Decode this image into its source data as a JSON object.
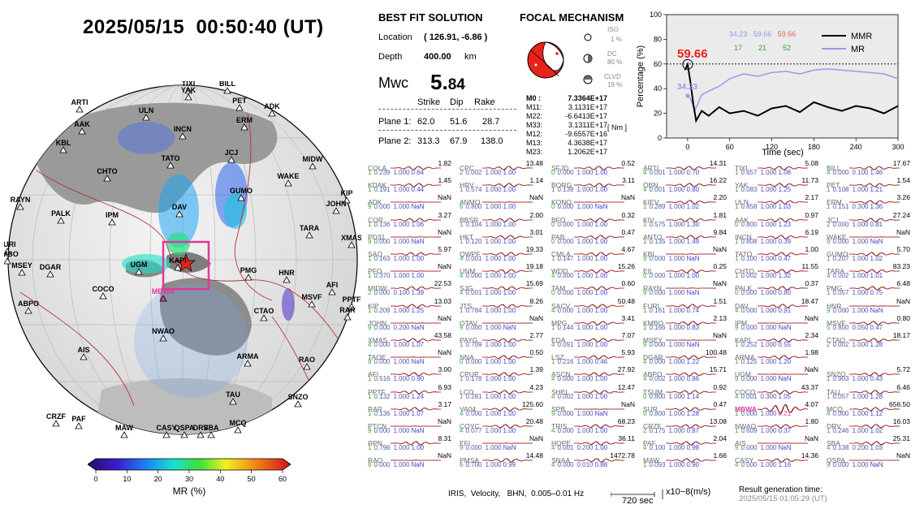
{
  "title": "2025/05/15  00:50:40 (UT)",
  "best_fit": {
    "heading": "BEST FIT SOLUTION",
    "location_label": "Location",
    "location_value": "( 126.91, -6.86 )",
    "depth_label": "Depth",
    "depth_value": "400.00",
    "depth_unit": "km",
    "mw_label": "Mwc",
    "mw_value_main": "5.",
    "mw_value_sub": "84",
    "col_strike": "Strike",
    "col_dip": "Dip",
    "col_rake": "Rake",
    "plane1_label": "Plane 1:",
    "plane1": [
      "62.0",
      "51.6",
      "28.7"
    ],
    "plane2_label": "Plane 2:",
    "plane2": [
      "313.3",
      "67.9",
      "138.0"
    ]
  },
  "focal": {
    "heading": "FOCAL MECHANISM",
    "iso_label": "ISO",
    "iso_value": "1 %",
    "dc_label": "DC",
    "dc_value": "80 %",
    "clvd_label": "CLVD",
    "clvd_value": "19 %",
    "moments": [
      {
        "k": "M0 :",
        "v": "7.3364E+17"
      },
      {
        "k": "M11:",
        "v": "3.1131E+17"
      },
      {
        "k": "M22:",
        "v": "-6.6413E+17"
      },
      {
        "k": "M33:",
        "v": "3.1311E+17"
      },
      {
        "k": "M12:",
        "v": "-9.6557E+16"
      },
      {
        "k": "M13:",
        "v": "4.3638E+17"
      },
      {
        "k": "M23:",
        "v": "1.2062E+17"
      }
    ],
    "unit": "[ Nm ]",
    "colors": {
      "compressional": "#e8231a",
      "dilatational": "#ffffff"
    }
  },
  "mmr_chart": {
    "big_value": "59.66",
    "marker_label": "34.23",
    "legend": [
      {
        "name": "MMR",
        "color": "#000000"
      },
      {
        "name": "MR",
        "color": "#9999ee"
      }
    ],
    "stats_row1": [
      "34.23",
      "59.66",
      "59.66"
    ],
    "stats_row2": [
      "17",
      "21",
      "52"
    ],
    "stats_colors": [
      "#9999ee",
      "#9999ee",
      "#e06060"
    ],
    "stats_colors2": [
      "#33aa33",
      "#33aa33",
      "#33aa33"
    ],
    "ylabel": "Percentage (%)",
    "xlabel": "Time (sec)",
    "xticks": [
      "0",
      "60",
      "120",
      "180",
      "240",
      "300"
    ],
    "yticks": [
      "0",
      "20",
      "40",
      "60",
      "80",
      "100"
    ],
    "ref_line": 60
  },
  "chart_data": {
    "type": "line",
    "xlabel": "Time (sec)",
    "ylabel": "Percentage (%)",
    "xlim": [
      -30,
      300
    ],
    "ylim": [
      0,
      100
    ],
    "series": [
      {
        "name": "MMR",
        "x": [
          -4,
          0,
          4,
          8,
          12,
          20,
          30,
          45,
          60,
          80,
          100,
          120,
          140,
          160,
          180,
          200,
          220,
          240,
          260,
          280,
          300
        ],
        "y": [
          55,
          59.66,
          45,
          28,
          14,
          22,
          18,
          25,
          20,
          22,
          18,
          24,
          26,
          21,
          29,
          25,
          22,
          26,
          24,
          20,
          26
        ]
      },
      {
        "name": "MR",
        "x": [
          0,
          4,
          10,
          20,
          30,
          45,
          60,
          80,
          100,
          120,
          140,
          160,
          180,
          200,
          220,
          240,
          260,
          280,
          300
        ],
        "y": [
          34.23,
          32,
          22,
          35,
          38,
          42,
          48,
          52,
          50,
          53,
          54,
          52,
          55,
          56,
          55,
          54,
          53,
          52,
          48
        ]
      }
    ]
  },
  "globe": {
    "stations": [
      {
        "n": "TIXI"
      },
      {
        "n": "YAK"
      },
      {
        "n": "BILL"
      },
      {
        "n": "ARTI"
      },
      {
        "n": "PET"
      },
      {
        "n": "ADK"
      },
      {
        "n": "ULN"
      },
      {
        "n": "AAK"
      },
      {
        "n": "ERM"
      },
      {
        "n": "INCN"
      },
      {
        "n": "KBL"
      },
      {
        "n": "JCJ"
      },
      {
        "n": "TATO"
      },
      {
        "n": "MIDW"
      },
      {
        "n": "CHTO"
      },
      {
        "n": "WAKE"
      },
      {
        "n": "GUMO"
      },
      {
        "n": "KIP"
      },
      {
        "n": "JOHN"
      },
      {
        "n": "RAYN"
      },
      {
        "n": "PALK"
      },
      {
        "n": "DAV"
      },
      {
        "n": "IPM"
      },
      {
        "n": "TARA"
      },
      {
        "n": "FURI"
      },
      {
        "n": "XMAS"
      },
      {
        "n": "KMBO"
      },
      {
        "n": "MSEY"
      },
      {
        "n": "DGAR"
      },
      {
        "n": "UGM"
      },
      {
        "n": "PMG"
      },
      {
        "n": "HNR"
      },
      {
        "n": "COCO"
      },
      {
        "n": "AFI"
      },
      {
        "n": "MSVF"
      },
      {
        "n": "PPTF"
      },
      {
        "n": "RAR"
      },
      {
        "n": "ABPO"
      },
      {
        "n": "MBWA"
      },
      {
        "n": "CTAO"
      },
      {
        "n": "NWAO"
      },
      {
        "n": "ARMA"
      },
      {
        "n": "RAO"
      },
      {
        "n": "AIS"
      },
      {
        "n": "TAU"
      },
      {
        "n": "SNZO"
      },
      {
        "n": "CRZF"
      },
      {
        "n": "PAF"
      },
      {
        "n": "MCQ"
      },
      {
        "n": "MAW"
      },
      {
        "n": "CASY"
      },
      {
        "n": "DRV"
      },
      {
        "n": "SBA"
      },
      {
        "n": "QSPA"
      },
      {
        "n": "KAPI"
      }
    ],
    "highlight_station": "MBWA"
  },
  "colorbar": {
    "ticks": [
      "0",
      "10",
      "20",
      "30",
      "40",
      "50",
      "60"
    ],
    "label": "MR (%)"
  },
  "stations_grid": [
    [
      "COLA",
      "1.82",
      "1",
      "0.239",
      "1.000",
      "0.64"
    ],
    [
      "CPC",
      "13.48",
      "2",
      "0.002",
      "1.000",
      "1.00"
    ],
    [
      "SFJD",
      "0.52",
      "0",
      "0.000",
      "1.000",
      "1.00"
    ],
    [
      "ARTI",
      "14.31",
      "4",
      "0.001",
      "1.000",
      "0.70"
    ],
    [
      "TIXI",
      "5.08",
      "1",
      "0.657",
      "1.000",
      "1.08"
    ],
    [
      "BILL",
      "17.67",
      "4",
      "0.000",
      "0.100",
      "1.46"
    ],
    [
      "KDAK",
      "1.45",
      "1",
      "0.191",
      "1.000",
      "0.44"
    ],
    [
      "HRV",
      "1.14",
      "1",
      "0.574",
      "1.000",
      "1.00"
    ],
    [
      "BORG",
      "3.11",
      "1",
      "0.139",
      "1.000",
      "1.00"
    ],
    [
      "OBN",
      "16.22",
      "4",
      "0.001",
      "1.000",
      "0.80"
    ],
    [
      "YAK",
      "11.73",
      "1",
      "0.083",
      "1.000",
      "1.25"
    ],
    [
      "PET",
      "1.54",
      "1",
      "0.108",
      "1.000",
      "1.21"
    ],
    [
      "ADK",
      "NaN",
      "9",
      "0.000",
      "1.000",
      "NaN"
    ],
    [
      "ANMO",
      "NaN",
      "6",
      "0.800",
      "1.000",
      "1.00"
    ],
    [
      "KONO",
      "NaN",
      "0",
      "0.000",
      "1.000",
      "NaN"
    ],
    [
      "KIEV",
      "2.20",
      "1",
      "0.289",
      "1.000",
      "1.02"
    ],
    [
      "ULN",
      "2.17",
      "1",
      "0.858",
      "1.000",
      "1.03"
    ],
    [
      "ERM",
      "3.26",
      "1",
      "0.151",
      "0.300",
      "1.36"
    ],
    [
      "COR",
      "3.27",
      "1",
      "0.136",
      "1.000",
      "1.06"
    ],
    [
      "BBSR",
      "2.00",
      "1",
      "0.104",
      "1.000",
      "1.00"
    ],
    [
      "BFO",
      "0.32",
      "0",
      "0.000",
      "1.000",
      "1.00"
    ],
    [
      "KIV",
      "1.81",
      "1",
      "0.575",
      "1.000",
      "1.30"
    ],
    [
      "AAK",
      "0.97",
      "0",
      "0.800",
      "1.000",
      "1.23"
    ],
    [
      "JCJ",
      "27.24",
      "2",
      "0.000",
      "1.000",
      "0.81"
    ],
    [
      "PD31",
      "NaN",
      "9",
      "0.000",
      "1.000",
      "NaN"
    ],
    [
      "HKT",
      "3.01",
      "1",
      "0.120",
      "1.000",
      "1.00"
    ],
    [
      "PAB",
      "0.47",
      "0",
      "0.000",
      "1.000",
      "1.00"
    ],
    [
      "ANTO",
      "9.84",
      "1",
      "0.135",
      "1.000",
      "1.49"
    ],
    [
      "INCN",
      "6.19",
      "1",
      "0.808",
      "1.000",
      "0.39"
    ],
    [
      "WAKE",
      "NaN",
      "9",
      "0.000",
      "1.000",
      "NaN"
    ],
    [
      "SAO",
      "5.97",
      "1",
      "0.163",
      "1.000",
      "1.00"
    ],
    [
      "QWPF",
      "19.33",
      "4",
      "0.001",
      "1.000",
      "1.00"
    ],
    [
      "CMLA",
      "4.67",
      "1",
      "0.147",
      "1.000",
      "1.00"
    ],
    [
      "KBL",
      "NaN",
      "9",
      "0.000",
      "1.000",
      "NaN"
    ],
    [
      "TATO",
      "1.00",
      "1",
      "0.100",
      "1.000",
      "0.47"
    ],
    [
      "GUMO",
      "5.70",
      "1",
      "0.207",
      "1.000",
      "1.02"
    ],
    [
      "PFO",
      "NaN",
      "1",
      "0.370",
      "1.000",
      "1.00"
    ],
    [
      "UNM",
      "19.18",
      "4",
      "0.000",
      "1.000",
      "1.00"
    ],
    [
      "WDD",
      "15.26",
      "4",
      "0.000",
      "1.000",
      "1.00"
    ],
    [
      "EIL",
      "0.25",
      "0",
      "0.000",
      "1.000",
      "1.00"
    ],
    [
      "CHTO",
      "11.55",
      "1",
      "0.002",
      "1.000",
      "1.32"
    ],
    [
      "TARA",
      "83.23",
      "4",
      "0.002",
      "1.000",
      "1.01"
    ],
    [
      "MIDW",
      "22.53",
      "2",
      "0.000",
      "0.100",
      "1.39"
    ],
    [
      "SJG",
      "15.69",
      "4",
      "0.001",
      "1.000",
      "1.00"
    ],
    [
      "TAM",
      "0.60",
      "0",
      "0.000",
      "1.000",
      "1.00"
    ],
    [
      "RAYN",
      "NaN",
      "9",
      "0.000",
      "1.000",
      "NaN"
    ],
    [
      "PALK",
      "0.37",
      "0",
      "0.000",
      "1.000",
      "0.80"
    ],
    [
      "PMG",
      "6.48",
      "1",
      "0.057",
      "1.000",
      "0.75"
    ],
    [
      "KIP",
      "13.03",
      "1",
      "0.209",
      "1.000",
      "1.25"
    ],
    [
      "JTS",
      "8.26",
      "1",
      "0.784",
      "1.000",
      "1.00"
    ],
    [
      "SACV",
      "50.48",
      "4",
      "0.000",
      "1.000",
      "1.00"
    ],
    [
      "FURI",
      "1.51",
      "1",
      "0.161",
      "1.000",
      "0.74"
    ],
    [
      "DAV",
      "18.47",
      "4",
      "0.000",
      "1.000",
      "0.91"
    ],
    [
      "HNR",
      "NaN",
      "9",
      "0.000",
      "1.000",
      "NaN"
    ],
    [
      "JOHN",
      "NaN",
      "9",
      "0.000",
      "0.200",
      "NaN"
    ],
    [
      "OTAV",
      "NaN",
      "9",
      "0.000",
      "1.000",
      "NaN"
    ],
    [
      "MPG",
      "3.41",
      "1",
      "0.144",
      "1.000",
      "1.00"
    ],
    [
      "KMBO",
      "2.13",
      "1",
      "0.166",
      "1.000",
      "0.83"
    ],
    [
      "IPM",
      "NaN",
      "9",
      "0.000",
      "1.000",
      "NaN"
    ],
    [
      "MSVF",
      "0.80",
      "5",
      "0.800",
      "0.050",
      "0.47"
    ],
    [
      "XMAS",
      "43.58",
      "4",
      "0.000",
      "1.000",
      "1.07"
    ],
    [
      "PAYG",
      "2.77",
      "1",
      "0.709",
      "1.000",
      "1.00"
    ],
    [
      "EDA",
      "7.07",
      "4",
      "0.091",
      "1.000",
      "1.00"
    ],
    [
      "MSEY",
      "NaN",
      "9",
      "0.000",
      "1.000",
      "NaN"
    ],
    [
      "KAPI",
      "2.34",
      "1",
      "0.252",
      "1.000",
      "0.55"
    ],
    [
      "CTAO",
      "18.17",
      "2",
      "0.002",
      "1.000",
      "1.28"
    ],
    [
      "TAOE",
      "NaN",
      "9",
      "0.000",
      "1.000",
      "NaN"
    ],
    [
      "NNA",
      "0.50",
      "0",
      "0.000",
      "1.000",
      "1.00"
    ],
    [
      "LSZ",
      "5.93",
      "1",
      "0.216",
      "1.000",
      "0.46"
    ],
    [
      "DGAR",
      "100.48",
      "4",
      "0.000",
      "1.000",
      "1.22"
    ],
    [
      "ARMA",
      "1.98",
      "1",
      "0.125",
      "1.000",
      "1.20"
    ],
    [
      "",
      "",
      " ",
      "",
      "",
      ""
    ],
    [
      "AFI",
      "3.00",
      "1",
      "0.516",
      "1.000",
      "0.90"
    ],
    [
      "CPUP",
      "1.39",
      "1",
      "0.178",
      "1.000",
      "1.00"
    ],
    [
      "ASCN",
      "27.92",
      "4",
      "0.000",
      "1.000",
      "1.00"
    ],
    [
      "ABPO",
      "15.71",
      "4",
      "0.002",
      "1.000",
      "0.86"
    ],
    [
      "UGM",
      "NaN",
      "9",
      "0.000",
      "1.000",
      "NaN"
    ],
    [
      "SNZO",
      "5.72",
      "1",
      "0.903",
      "1.000",
      "0.43"
    ],
    [
      "PPTF",
      "6.93",
      "1",
      "0.132",
      "1.000",
      "1.24"
    ],
    [
      "LCO",
      "4.23",
      "1",
      "0.281",
      "1.000",
      "1.00"
    ],
    [
      "SHEL",
      "12.47",
      "4",
      "0.002",
      "1.000",
      "1.00"
    ],
    [
      "TSUM",
      "0.92",
      "0",
      "0.800",
      "1.000",
      "1.14"
    ],
    [
      "COCO",
      "43.37",
      "4",
      "0.001",
      "0.300",
      "1.05"
    ],
    [
      "TAU",
      "6.46",
      "1",
      "0.057",
      "1.000",
      "1.28"
    ],
    [
      "RAR",
      "3.17",
      "1",
      "0.136",
      "1.000",
      "1.07"
    ],
    [
      "VA04",
      "125.60",
      "4",
      "0.000",
      "1.000",
      "1.00"
    ],
    [
      "SPB",
      "NaN",
      "9",
      "0.000",
      "1.000",
      "NaN"
    ],
    [
      "SUR",
      "0.47",
      "0",
      "0.800",
      "1.000",
      "1.28"
    ],
    [
      "MBWA",
      "4.07",
      "1",
      "0.000",
      "1.000",
      "0.21"
    ],
    [
      "MCQ",
      "656.50",
      "4",
      "0.000",
      "1.000",
      "1.12"
    ],
    [
      "PTCN",
      "NaN",
      "9",
      "0.000",
      "1.000",
      "NaN"
    ],
    [
      "COYC",
      "20.48",
      "4",
      "0.077",
      "1.000",
      "1.00"
    ],
    [
      "TRIS",
      "68.23",
      "4",
      "0.000",
      "1.000",
      "1.00"
    ],
    [
      "CRZF",
      "13.08",
      "2",
      "0.175",
      "1.000",
      "0.87"
    ],
    [
      "NWAO",
      "1.80",
      "1",
      "0.609",
      "1.000",
      "0.37"
    ],
    [
      "DRV",
      "16.03",
      "1",
      "0.246",
      "1.000",
      "1.02"
    ],
    [
      "RPN",
      "8.31",
      "1",
      "0.796",
      "1.000",
      "1.00"
    ],
    [
      "EFI",
      "NaN",
      "9",
      "0.000",
      "1.000",
      "NaN"
    ],
    [
      "HOPE",
      "36.11",
      "4",
      "0.001",
      "0.200",
      "1.00"
    ],
    [
      "PAF",
      "2.04",
      "4",
      "0.100",
      "1.000",
      "0.98"
    ],
    [
      "AIS",
      "NaN",
      "9",
      "0.000",
      "1.000",
      "NaN"
    ],
    [
      "SBA",
      "25.31",
      "4",
      "0.138",
      "0.200",
      "1.03"
    ],
    [
      "RAO",
      "NaN",
      "6",
      "0.000",
      "1.000",
      "NaN"
    ],
    [
      "PMSA",
      "14.48",
      "6",
      "0.700",
      "1.000",
      "0.99"
    ],
    [
      "SNAA",
      "1472.78",
      "4",
      "0.000",
      "0.010",
      "0.88"
    ],
    [
      "MAW",
      "1.66",
      "1",
      "0.093",
      "1.000",
      "0.90"
    ],
    [
      "CASY",
      "14.36",
      "4",
      "0.000",
      "1.000",
      "1.16"
    ],
    [
      "QSPA",
      "NaN",
      "9",
      "0.000",
      "1.000",
      "NaN"
    ]
  ],
  "footer": {
    "text": "IRIS,  Velocity,   BHN,  0.005–0.01 Hz",
    "scale_label": "720 sec",
    "scale_unit": "x10−8(m/s)",
    "result_label": "Result generation time:",
    "result_time": "2025/05/15 01:05:29 (UT)"
  }
}
